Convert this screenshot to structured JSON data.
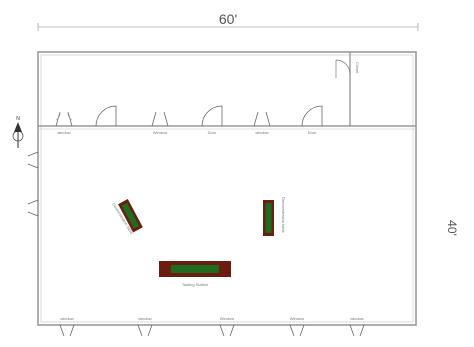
{
  "dimensions": {
    "width_label": "60'",
    "depth_label": "40'"
  },
  "rooms": {
    "small_room_label": "Closet"
  },
  "top_doors": [
    {
      "label": "window"
    },
    {
      "label": "Window"
    },
    {
      "label": "Door"
    },
    {
      "label": "window"
    },
    {
      "label": "Door"
    }
  ],
  "bottom_windows": [
    {
      "label": "window"
    },
    {
      "label": "window"
    },
    {
      "label": "Window"
    },
    {
      "label": "Window"
    },
    {
      "label": "window"
    }
  ],
  "tables": {
    "left_table": "Demonstration table",
    "right_table": "Demonstration table",
    "center_table": "Tasting Station"
  },
  "compass": {
    "label": "N"
  },
  "colors": {
    "wall": "#9a9a9a",
    "table_border": "#6b1d10",
    "table_fill": "#1f6b1f"
  }
}
